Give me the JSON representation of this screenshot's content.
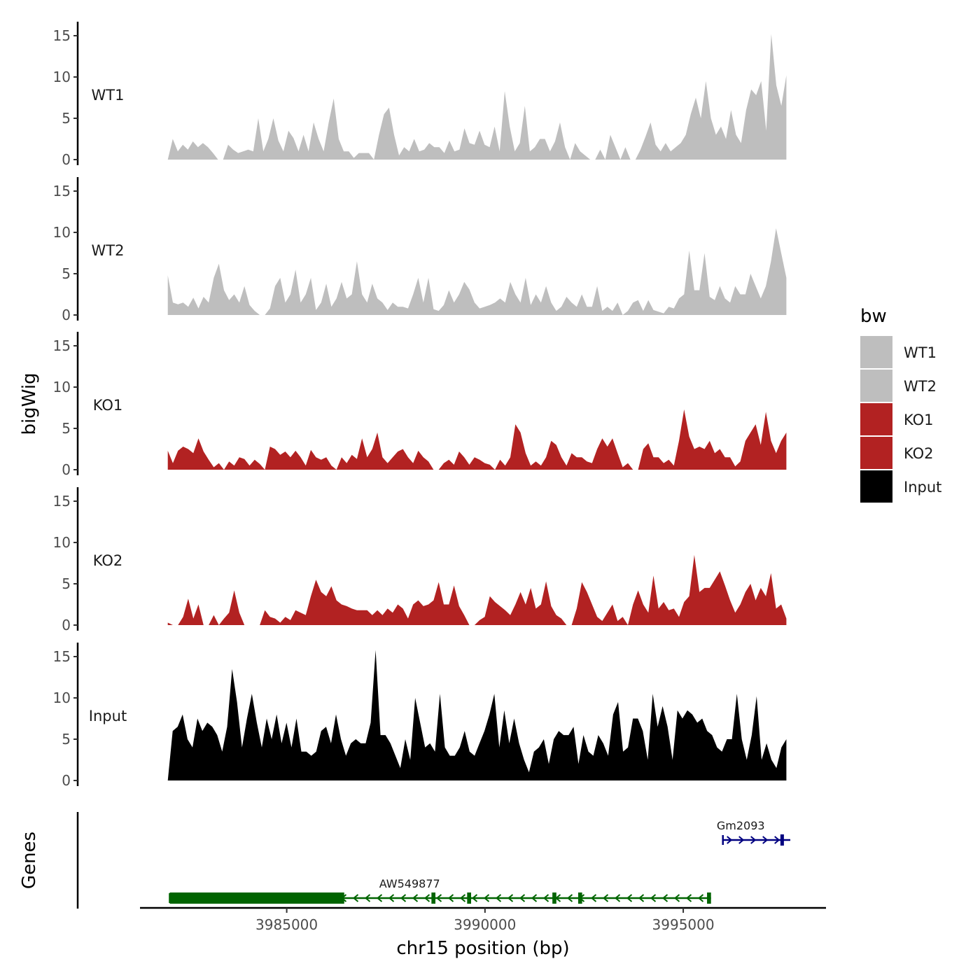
{
  "chart_data": {
    "type": "area",
    "title": "",
    "chromosome": "chr15",
    "xlabel": "chr15 position (bp)",
    "ylabel": "bigWig",
    "genes_label": "Genes",
    "xlim": [
      3981300,
      3998600
    ],
    "xticks": [
      3985000,
      3990000,
      3995000
    ],
    "xtick_labels": [
      "3985000",
      "3990000",
      "3995000"
    ],
    "ylim": [
      0,
      16
    ],
    "yticks": [
      0,
      5,
      10,
      15
    ],
    "data_range": [
      3982000,
      3997600
    ],
    "legend": {
      "title": "bw",
      "entries": [
        {
          "name": "WT1",
          "color": "#bebebe"
        },
        {
          "name": "WT2",
          "color": "#bebebe"
        },
        {
          "name": "KO1",
          "color": "#b22222"
        },
        {
          "name": "KO2",
          "color": "#b22222"
        },
        {
          "name": "Input",
          "color": "#000000"
        }
      ]
    },
    "series": [
      {
        "name": "WT1",
        "color": "#bebebe",
        "values": [
          0,
          2.5,
          1,
          1.8,
          1.2,
          2.2,
          1.5,
          2,
          1.5,
          0.8,
          0,
          0,
          1.8,
          1.2,
          0.8,
          1,
          1.2,
          1,
          5,
          1,
          2.5,
          5,
          2.3,
          1,
          3.5,
          2.6,
          1,
          3,
          1,
          4.5,
          2.5,
          1,
          4.5,
          7.4,
          2.5,
          1,
          1,
          0.2,
          0.8,
          0.8,
          0.8,
          0,
          3,
          5.5,
          6.3,
          3,
          0.5,
          1.5,
          1,
          2.5,
          1,
          1.2,
          2,
          1.5,
          1.5,
          0.8,
          2.3,
          1,
          1.2,
          3.8,
          2,
          1.8,
          3.5,
          1.8,
          1.5,
          4,
          1,
          8.3,
          4,
          1,
          2,
          6.5,
          1,
          1.5,
          2.5,
          2.5,
          1,
          2.2,
          4.5,
          1.5,
          0,
          2,
          1,
          0.5,
          0,
          0,
          1.2,
          0,
          3,
          1.5,
          0,
          1.5,
          0,
          0,
          1.2,
          2.8,
          4.5,
          1.8,
          1,
          2,
          1,
          1.5,
          2,
          3,
          5.5,
          7.5,
          5,
          9.5,
          5,
          3,
          4,
          2.5,
          6,
          3,
          2,
          6,
          8.5,
          7.8,
          9.5,
          3.5,
          15.2,
          9,
          6.5,
          10.2
        ]
      },
      {
        "name": "WT2",
        "color": "#bebebe",
        "values": [
          4.8,
          1.5,
          1.3,
          1.5,
          1,
          2.1,
          0.8,
          2.2,
          1.5,
          4.5,
          6.2,
          3,
          1.8,
          2.5,
          1.5,
          3.5,
          1.2,
          0.5,
          0,
          0,
          0.8,
          3.5,
          4.5,
          1.5,
          2.5,
          5.5,
          1.5,
          2.5,
          4.5,
          0.6,
          1.5,
          3.8,
          1,
          2,
          4,
          2,
          2.5,
          6.5,
          2.5,
          1.5,
          3.8,
          2,
          1.5,
          0.6,
          1.5,
          1,
          1,
          0.8,
          2.5,
          4.5,
          1.5,
          4.5,
          0.7,
          0.5,
          1.2,
          3,
          1.5,
          2.5,
          4,
          3.1,
          1.5,
          0.8,
          1,
          1.2,
          1.5,
          2,
          1.5,
          4,
          2.5,
          1.5,
          4.5,
          1.2,
          2.5,
          1.5,
          3.5,
          1.5,
          0.5,
          1,
          2.2,
          1.5,
          1,
          2.5,
          1,
          1,
          3.5,
          0.5,
          1,
          0.5,
          1.5,
          0,
          0.5,
          1.5,
          1.8,
          0.5,
          1.8,
          0.6,
          0.4,
          0.2,
          1,
          0.8,
          2,
          2.5,
          7.8,
          3,
          3,
          7.5,
          2.2,
          1.8,
          3.5,
          2,
          1.5,
          3.5,
          2.5,
          2.5,
          5,
          3.5,
          2,
          3.5,
          6.5,
          10.5,
          7.5,
          4.5
        ]
      },
      {
        "name": "KO1",
        "color": "#b22222",
        "values": [
          2.3,
          0.8,
          2.3,
          2.8,
          2.5,
          2,
          3.8,
          2.2,
          1.2,
          0.3,
          0.8,
          0,
          1,
          0.5,
          1.5,
          1.3,
          0.5,
          1.2,
          0.7,
          0,
          2.8,
          2.5,
          1.8,
          2.2,
          1.5,
          2.3,
          1.5,
          0.5,
          2.4,
          1.5,
          1.2,
          1.5,
          0.5,
          0,
          1.5,
          0.8,
          1.8,
          1.3,
          3.8,
          1.5,
          2.5,
          4.5,
          1.5,
          0.8,
          1.5,
          2.2,
          2.5,
          1.5,
          0.8,
          2.3,
          1.5,
          1,
          0,
          0,
          0.8,
          1.2,
          0.6,
          2.2,
          1.5,
          0.6,
          1.5,
          1.2,
          0.8,
          0.6,
          0,
          1.2,
          0.5,
          1.5,
          5.5,
          4.5,
          2,
          0.5,
          1,
          0.5,
          1.5,
          3.5,
          3,
          1.5,
          0.5,
          2,
          1.5,
          1.5,
          1,
          0.8,
          2.5,
          3.8,
          2.8,
          3.8,
          2,
          0.3,
          0.8,
          0,
          0,
          2.5,
          3.2,
          1.5,
          1.5,
          0.8,
          1.2,
          0.5,
          3.5,
          7.3,
          4,
          2.5,
          2.8,
          2.5,
          3.5,
          2,
          2.5,
          1.5,
          1.5,
          0.4,
          1,
          3.5,
          4.5,
          5.5,
          3,
          7,
          3.5,
          2,
          3.5,
          4.5
        ]
      },
      {
        "name": "KO2",
        "color": "#b22222",
        "values": [
          0.3,
          0,
          0,
          1,
          3.2,
          0.8,
          2.5,
          0,
          0,
          1.2,
          0,
          0.8,
          1.5,
          4.2,
          1.5,
          0,
          0,
          0,
          0,
          1.8,
          1,
          0.8,
          0.3,
          1,
          0.6,
          1.8,
          1.5,
          1.2,
          3.5,
          5.5,
          4,
          3.5,
          4.7,
          3,
          2.5,
          2.3,
          2,
          1.8,
          1.8,
          1.8,
          1.2,
          1.8,
          1.2,
          2,
          1.5,
          2.5,
          2,
          0.8,
          2.5,
          3,
          2.3,
          2.5,
          3,
          5.2,
          2.5,
          2.5,
          4.8,
          2.3,
          1.2,
          0,
          0,
          0.6,
          1,
          3.5,
          2.8,
          2.3,
          1.8,
          1.2,
          2.5,
          4,
          2.5,
          4.5,
          2,
          2.5,
          5.3,
          2.3,
          1.2,
          0.8,
          0,
          0,
          2,
          5.2,
          4,
          2.5,
          1,
          0.5,
          1.5,
          2.5,
          0.5,
          1,
          0,
          2.5,
          4.2,
          2.5,
          1.5,
          6,
          2,
          2.8,
          1.8,
          2,
          1,
          2.8,
          3.5,
          8.5,
          4,
          4.5,
          4.5,
          5.5,
          6.5,
          4.8,
          3,
          1.5,
          2.5,
          4,
          5,
          3,
          4.5,
          3.5,
          6.3,
          2,
          2.5,
          0.8
        ]
      },
      {
        "name": "Input",
        "color": "#000000",
        "values": [
          0,
          6,
          6.5,
          8,
          5,
          4,
          7.5,
          6,
          7,
          6.5,
          5.5,
          3.5,
          6.5,
          13.5,
          9.5,
          4,
          7.5,
          10.5,
          7,
          4,
          7.5,
          5,
          8,
          4.5,
          7,
          4,
          7.5,
          3.5,
          3.5,
          3,
          3.5,
          6,
          6.5,
          4.5,
          8,
          5,
          3,
          4.5,
          5,
          4.5,
          4.5,
          7,
          15.8,
          5.5,
          5.5,
          4.5,
          3,
          1.5,
          5,
          2.5,
          10,
          7,
          4,
          4.5,
          3.5,
          10.5,
          4,
          3,
          3,
          4,
          6,
          3.5,
          3,
          4.5,
          6,
          8,
          10.5,
          4,
          8.5,
          4.5,
          7.5,
          4.5,
          2.5,
          1,
          3.5,
          4,
          5,
          2,
          5,
          6,
          5.5,
          5.5,
          6.5,
          2,
          5.5,
          3.5,
          3,
          5.5,
          4.5,
          3,
          8,
          9.5,
          3.5,
          4,
          7.5,
          7.5,
          6,
          2.5,
          10.5,
          6.5,
          9,
          6.5,
          2.5,
          8.5,
          7.5,
          8.5,
          8,
          7,
          7.5,
          6,
          5.5,
          4,
          3.5,
          5,
          5,
          10.5,
          5,
          2.5,
          5.5,
          10.2,
          2.5,
          4.5,
          2.5,
          1.5,
          4,
          5
        ]
      }
    ],
    "genes": [
      {
        "name": "Gm2093",
        "strand": "+",
        "color": "#000080",
        "start": 3996000,
        "end": 3997700,
        "exons": [
          [
            3997450,
            3997500
          ]
        ]
      },
      {
        "name": "AW549877",
        "strand": "-",
        "color": "#006400",
        "start": 3982050,
        "end": 3995700,
        "exons": [
          [
            3982050,
            3986450
          ],
          [
            3988650,
            3988750
          ],
          [
            3989550,
            3989650
          ],
          [
            3991700,
            3991800
          ],
          [
            3992350,
            3992450
          ],
          [
            3995600,
            3995700
          ]
        ]
      }
    ]
  }
}
